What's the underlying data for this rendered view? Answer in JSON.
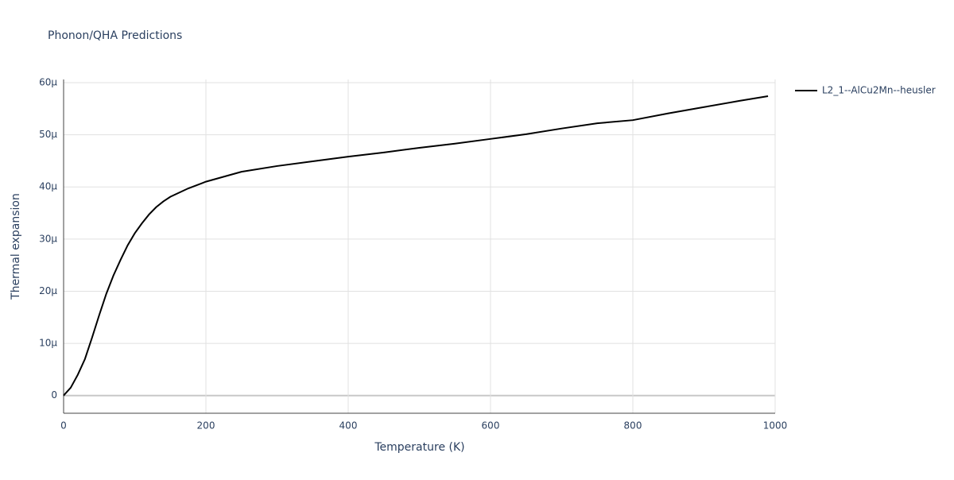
{
  "chart_data": {
    "type": "line",
    "title": "Phonon/QHA Predictions",
    "xlabel": "Temperature (K)",
    "ylabel": "Thermal expansion",
    "xlim": [
      0,
      1000
    ],
    "xticks": [
      0,
      200,
      400,
      600,
      800,
      1000
    ],
    "ylim": [
      -3.4e-06,
      6.06e-05
    ],
    "yticks": [
      0,
      {
        "value": 1e-05,
        "label": "10µ"
      },
      {
        "value": 2e-05,
        "label": "20µ"
      },
      {
        "value": 3e-05,
        "label": "30µ"
      },
      {
        "value": 4e-05,
        "label": "40µ"
      },
      {
        "value": 5e-05,
        "label": "50µ"
      },
      {
        "value": 6e-05,
        "label": "60µ"
      }
    ],
    "grid": true,
    "legend": "right",
    "x": [
      0,
      10,
      20,
      30,
      40,
      50,
      60,
      70,
      80,
      90,
      100,
      110,
      120,
      130,
      140,
      150,
      175,
      200,
      250,
      300,
      350,
      400,
      450,
      500,
      550,
      600,
      650,
      700,
      750,
      800,
      850,
      900,
      950,
      990
    ],
    "series": [
      {
        "name": "L2_1--AlCu2Mn--heusler",
        "color": "#000000",
        "values": [
          0,
          1.5e-06,
          4e-06,
          7e-06,
          1.11e-05,
          1.54e-05,
          1.95e-05,
          2.3e-05,
          2.6e-05,
          2.88e-05,
          3.11e-05,
          3.3e-05,
          3.47e-05,
          3.61e-05,
          3.72e-05,
          3.81e-05,
          3.97e-05,
          4.1e-05,
          4.29e-05,
          4.4e-05,
          4.49e-05,
          4.58e-05,
          4.66e-05,
          4.75e-05,
          4.83e-05,
          4.92e-05,
          5.01e-05,
          5.12e-05,
          5.22e-05,
          5.28e-05,
          5.41e-05,
          5.53e-05,
          5.65e-05,
          5.74e-05
        ]
      }
    ]
  }
}
